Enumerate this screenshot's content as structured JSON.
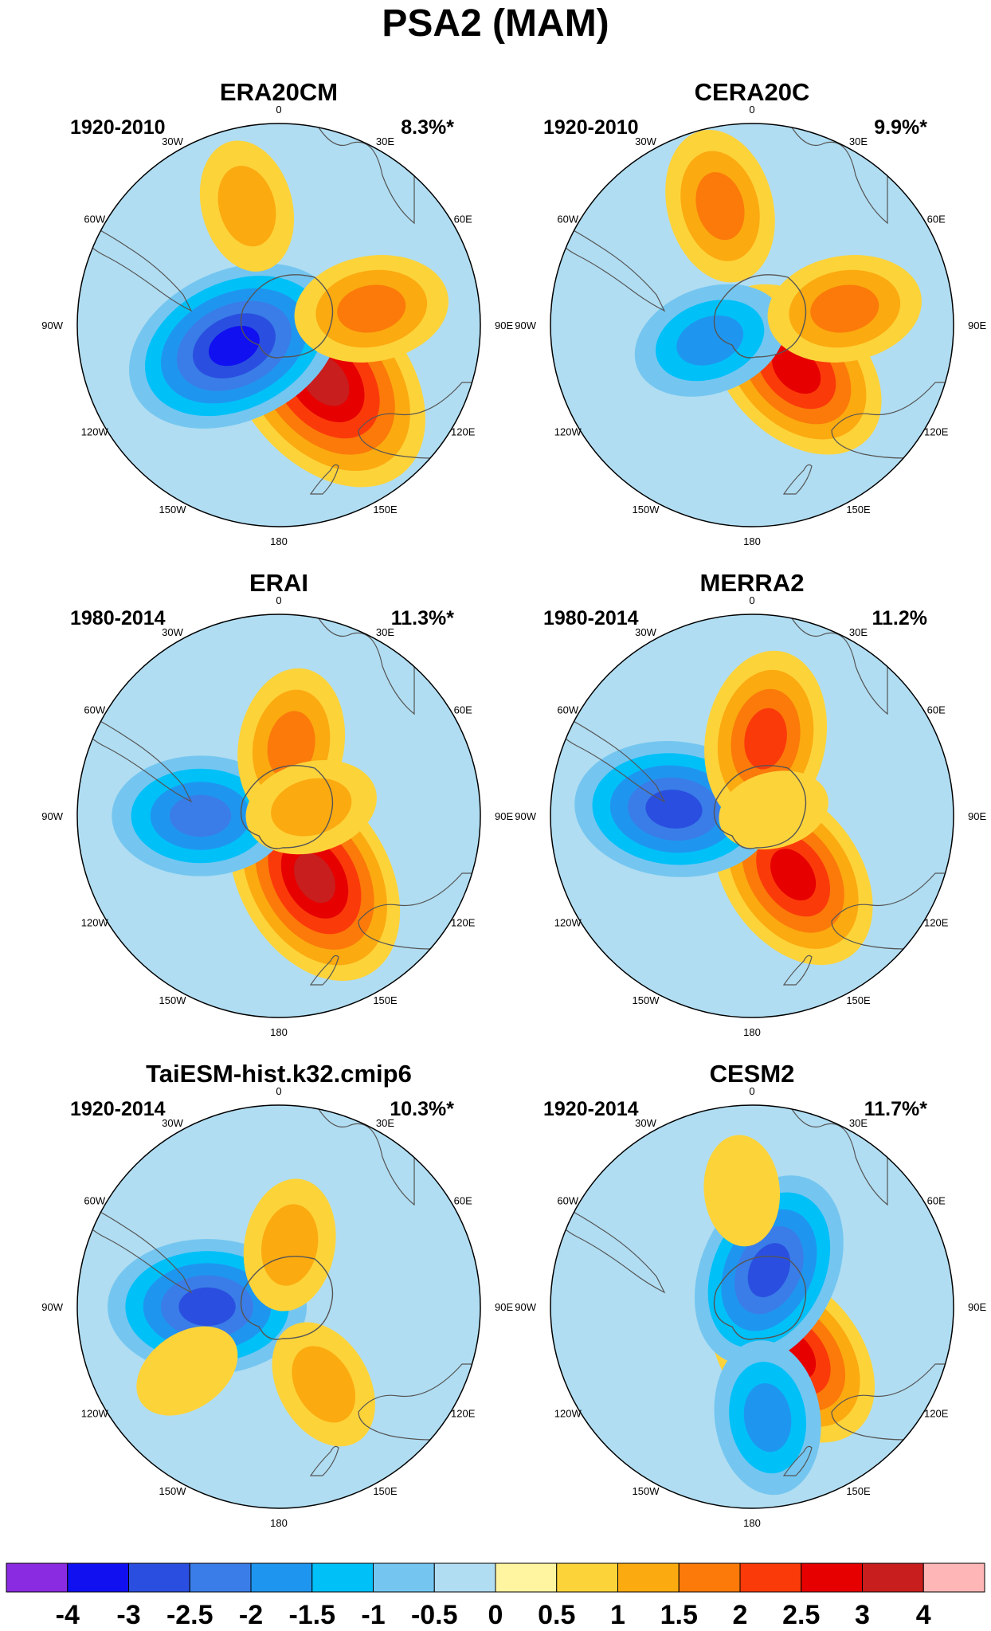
{
  "figure": {
    "title": "PSA2 (MAM)"
  },
  "longitude_labels": [
    "0",
    "30E",
    "60E",
    "90E",
    "120E",
    "150E",
    "180",
    "150W",
    "120W",
    "90W",
    "60W",
    "30W"
  ],
  "panels": [
    {
      "title": "ERA20CM",
      "period": "1920-2010",
      "variance": "8.3%*"
    },
    {
      "title": "CERA20C",
      "period": "1920-2010",
      "variance": "9.9%*"
    },
    {
      "title": "ERAI",
      "period": "1980-2014",
      "variance": "11.3%*"
    },
    {
      "title": "MERRA2",
      "period": "1980-2014",
      "variance": "11.2%"
    },
    {
      "title": "TaiESM-hist.k32.cmip6",
      "period": "1920-2014",
      "variance": "10.3%*"
    },
    {
      "title": "CESM2",
      "period": "1920-2014",
      "variance": "11.7%*"
    }
  ],
  "colorbar": {
    "labels": [
      "-4",
      "-3",
      "-2.5",
      "-2",
      "-1.5",
      "-1",
      "-0.5",
      "0",
      "0.5",
      "1",
      "1.5",
      "2",
      "2.5",
      "3",
      "4"
    ],
    "colors": [
      "#8a2be2",
      "#1010f0",
      "#2a4fe0",
      "#3a7de8",
      "#1e96f0",
      "#00c0f8",
      "#74c6f0",
      "#b0ddf2",
      "#fff5a0",
      "#fdd33a",
      "#fbaa10",
      "#fb7a0a",
      "#fb3a0a",
      "#e60000",
      "#c81e1e",
      "#ffb6b6"
    ]
  },
  "chart_data": {
    "type": "heatmap",
    "projection": "south polar stereographic",
    "field": "PSA2 pattern (MAM)",
    "contour_levels": [
      -4,
      -3,
      -2.5,
      -2,
      -1.5,
      -1,
      -0.5,
      0,
      0.5,
      1,
      1.5,
      2,
      2.5,
      3,
      4
    ],
    "panels": [
      {
        "name": "ERA20CM",
        "centers": [
          {
            "lon": 140,
            "lat": -58,
            "value": 3.5
          },
          {
            "lon": 245,
            "lat": -68,
            "value": -3.0
          },
          {
            "lon": 80,
            "lat": -48,
            "value": 1.5
          },
          {
            "lon": 345,
            "lat": -35,
            "value": 1.0
          }
        ]
      },
      {
        "name": "CERA20C",
        "centers": [
          {
            "lon": 135,
            "lat": -62,
            "value": 2.5
          },
          {
            "lon": 250,
            "lat": -70,
            "value": -1.5
          },
          {
            "lon": 80,
            "lat": -48,
            "value": 1.5
          },
          {
            "lon": 345,
            "lat": -35,
            "value": 1.5
          }
        ]
      },
      {
        "name": "ERAI",
        "centers": [
          {
            "lon": 150,
            "lat": -58,
            "value": 3.0
          },
          {
            "lon": 270,
            "lat": -55,
            "value": -2.0
          },
          {
            "lon": 10,
            "lat": -58,
            "value": 1.5
          },
          {
            "lon": 75,
            "lat": -75,
            "value": 1.0
          }
        ]
      },
      {
        "name": "MERRA2",
        "centers": [
          {
            "lon": 145,
            "lat": -58,
            "value": 2.5
          },
          {
            "lon": 275,
            "lat": -55,
            "value": -2.5
          },
          {
            "lon": 10,
            "lat": -55,
            "value": 2.0
          },
          {
            "lon": 75,
            "lat": -80,
            "value": 0.5
          }
        ]
      },
      {
        "name": "TaiESM-hist.k32.cmip6",
        "centers": [
          {
            "lon": 270,
            "lat": -58,
            "value": -2.5
          },
          {
            "lon": 150,
            "lat": -50,
            "value": 1.0
          },
          {
            "lon": 10,
            "lat": -62,
            "value": 1.0
          },
          {
            "lon": 235,
            "lat": -40,
            "value": 0.5
          }
        ]
      },
      {
        "name": "CESM2",
        "centers": [
          {
            "lon": 140,
            "lat": -62,
            "value": 2.5
          },
          {
            "lon": 25,
            "lat": -72,
            "value": -2.5
          },
          {
            "lon": 172,
            "lat": -40,
            "value": -1.5
          },
          {
            "lon": 355,
            "lat": -38,
            "value": 0.5
          }
        ]
      }
    ]
  }
}
